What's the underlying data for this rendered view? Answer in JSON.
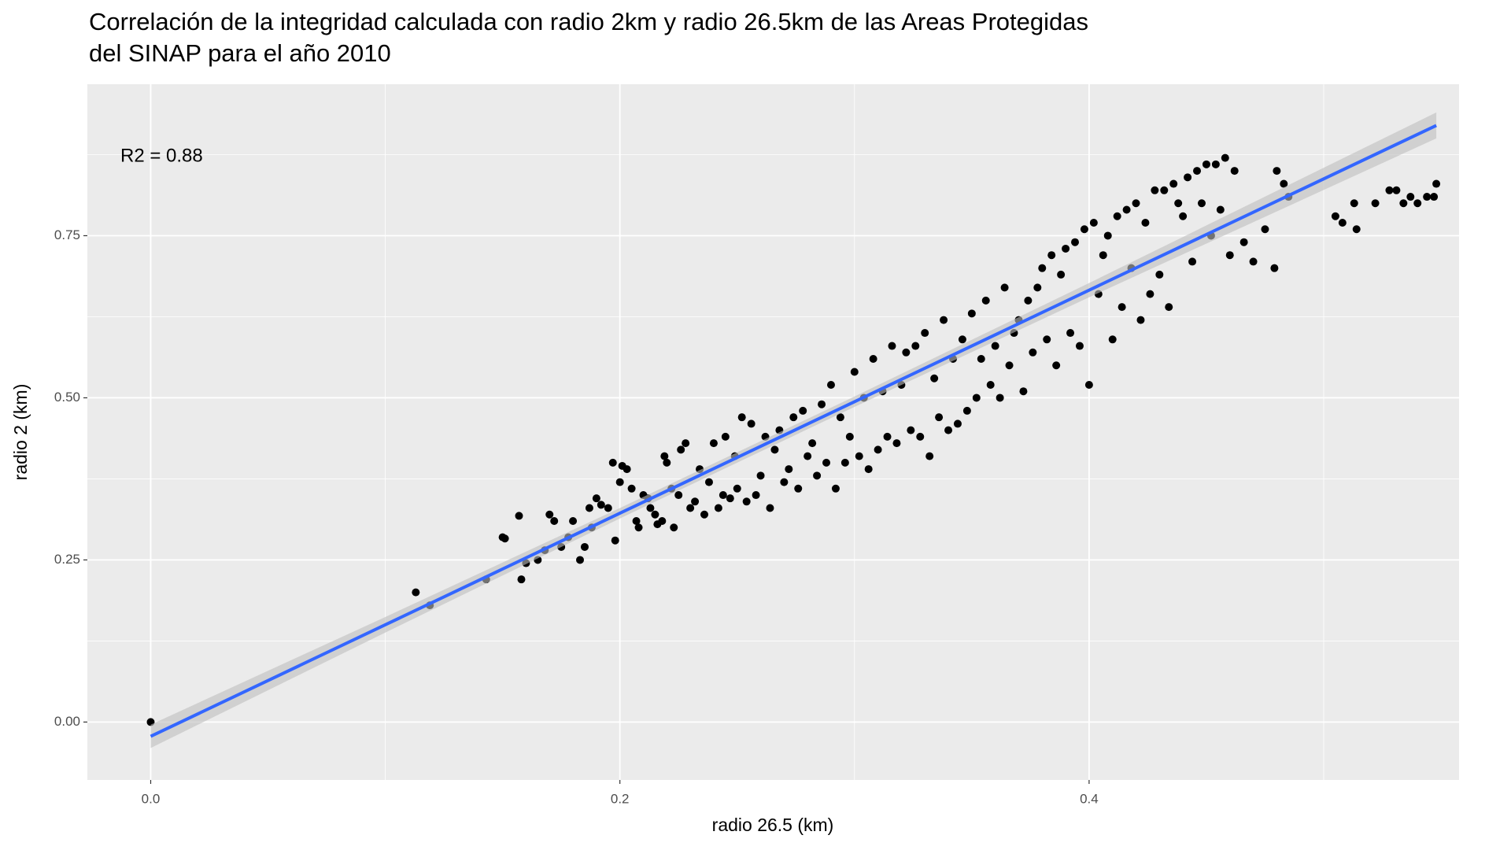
{
  "chart_data": {
    "type": "scatter",
    "title": [
      "Correlación de la integridad calculada con radio 2km y radio 26.5km de las Areas Protegidas",
      "del SINAP para el año 2010"
    ],
    "x_label": "radio 26.5 (km)",
    "y_label": "radio 2 (km)",
    "annotation": "R2 = 0.88",
    "color": "#000000",
    "grid": true,
    "xlim": [
      -0.027,
      0.5577
    ],
    "ylim": [
      -0.0893,
      0.9836
    ],
    "xticks": [
      {
        "value": 0,
        "label": "0.0"
      },
      {
        "value": 0.2,
        "label": "0.2"
      },
      {
        "value": 0.4,
        "label": "0.4"
      }
    ],
    "yticks": [
      {
        "value": 0,
        "label": "0.00"
      },
      {
        "value": 0.25,
        "label": "0.25"
      },
      {
        "value": 0.5,
        "label": "0.50"
      },
      {
        "value": 0.75,
        "label": "0.75"
      }
    ],
    "minor_xticks": [
      0.1,
      0.3,
      0.5
    ],
    "minor_yticks": [
      0.125,
      0.375,
      0.625,
      0.875
    ],
    "x": [
      0,
      0.113,
      0.119,
      0.143,
      0.15,
      0.151,
      0.157,
      0.158,
      0.16,
      0.165,
      0.168,
      0.17,
      0.172,
      0.175,
      0.178,
      0.18,
      0.183,
      0.185,
      0.187,
      0.188,
      0.19,
      0.192,
      0.195,
      0.197,
      0.198,
      0.2,
      0.201,
      0.203,
      0.205,
      0.207,
      0.208,
      0.21,
      0.212,
      0.213,
      0.215,
      0.216,
      0.218,
      0.219,
      0.22,
      0.222,
      0.223,
      0.225,
      0.226,
      0.228,
      0.23,
      0.232,
      0.234,
      0.236,
      0.238,
      0.24,
      0.242,
      0.244,
      0.245,
      0.247,
      0.249,
      0.25,
      0.252,
      0.254,
      0.256,
      0.258,
      0.26,
      0.262,
      0.264,
      0.266,
      0.268,
      0.27,
      0.272,
      0.274,
      0.276,
      0.278,
      0.28,
      0.282,
      0.284,
      0.286,
      0.288,
      0.29,
      0.292,
      0.294,
      0.296,
      0.298,
      0.3,
      0.302,
      0.304,
      0.306,
      0.308,
      0.31,
      0.312,
      0.314,
      0.316,
      0.318,
      0.32,
      0.322,
      0.324,
      0.326,
      0.328,
      0.33,
      0.332,
      0.334,
      0.336,
      0.338,
      0.34,
      0.342,
      0.344,
      0.346,
      0.348,
      0.35,
      0.352,
      0.354,
      0.356,
      0.358,
      0.36,
      0.362,
      0.364,
      0.366,
      0.368,
      0.37,
      0.372,
      0.374,
      0.376,
      0.378,
      0.38,
      0.382,
      0.384,
      0.386,
      0.388,
      0.39,
      0.392,
      0.394,
      0.396,
      0.398,
      0.4,
      0.402,
      0.404,
      0.406,
      0.408,
      0.41,
      0.412,
      0.414,
      0.416,
      0.418,
      0.42,
      0.422,
      0.424,
      0.426,
      0.428,
      0.43,
      0.432,
      0.434,
      0.436,
      0.438,
      0.44,
      0.442,
      0.444,
      0.446,
      0.448,
      0.45,
      0.452,
      0.454,
      0.456,
      0.458,
      0.46,
      0.462,
      0.466,
      0.47,
      0.475,
      0.479,
      0.48,
      0.483,
      0.485,
      0.505,
      0.508,
      0.513,
      0.514,
      0.522,
      0.528,
      0.531,
      0.534,
      0.537,
      0.54,
      0.544,
      0.547,
      0.548
    ],
    "values": [
      0,
      0.2,
      0.18,
      0.22,
      0.285,
      0.283,
      0.318,
      0.22,
      0.245,
      0.25,
      0.265,
      0.32,
      0.31,
      0.27,
      0.285,
      0.31,
      0.25,
      0.27,
      0.33,
      0.3,
      0.345,
      0.335,
      0.33,
      0.4,
      0.28,
      0.37,
      0.395,
      0.39,
      0.36,
      0.31,
      0.3,
      0.35,
      0.345,
      0.33,
      0.32,
      0.305,
      0.31,
      0.41,
      0.4,
      0.36,
      0.3,
      0.35,
      0.42,
      0.43,
      0.33,
      0.34,
      0.39,
      0.32,
      0.37,
      0.43,
      0.33,
      0.35,
      0.44,
      0.345,
      0.41,
      0.36,
      0.47,
      0.34,
      0.46,
      0.35,
      0.38,
      0.44,
      0.33,
      0.42,
      0.45,
      0.37,
      0.39,
      0.47,
      0.36,
      0.48,
      0.41,
      0.43,
      0.38,
      0.49,
      0.4,
      0.52,
      0.36,
      0.47,
      0.4,
      0.44,
      0.54,
      0.41,
      0.5,
      0.39,
      0.56,
      0.42,
      0.51,
      0.44,
      0.58,
      0.43,
      0.52,
      0.57,
      0.45,
      0.58,
      0.44,
      0.6,
      0.41,
      0.53,
      0.47,
      0.62,
      0.45,
      0.56,
      0.46,
      0.59,
      0.48,
      0.63,
      0.5,
      0.56,
      0.65,
      0.52,
      0.58,
      0.5,
      0.67,
      0.55,
      0.6,
      0.62,
      0.51,
      0.65,
      0.57,
      0.67,
      0.7,
      0.59,
      0.72,
      0.55,
      0.69,
      0.73,
      0.6,
      0.74,
      0.58,
      0.76,
      0.52,
      0.77,
      0.66,
      0.72,
      0.75,
      0.59,
      0.78,
      0.64,
      0.79,
      0.7,
      0.8,
      0.62,
      0.77,
      0.66,
      0.82,
      0.69,
      0.82,
      0.64,
      0.83,
      0.8,
      0.78,
      0.84,
      0.71,
      0.85,
      0.8,
      0.86,
      0.75,
      0.86,
      0.79,
      0.87,
      0.72,
      0.85,
      0.74,
      0.71,
      0.76,
      0.7,
      0.85,
      0.83,
      0.81,
      0.78,
      0.77,
      0.8,
      0.76,
      0.8,
      0.82,
      0.82,
      0.8,
      0.81,
      0.8,
      0.81,
      0.81,
      0.83
    ],
    "fit": {
      "color": "#3366ff",
      "band_color": "#bebebe",
      "x": [
        0,
        0.1,
        0.2,
        0.3,
        0.4,
        0.548
      ],
      "values": [
        -0.022,
        0.15,
        0.322,
        0.494,
        0.666,
        0.92
      ],
      "lower": [
        -0.04,
        0.138,
        0.314,
        0.486,
        0.655,
        0.9
      ],
      "upper": [
        -0.004,
        0.162,
        0.33,
        0.502,
        0.677,
        0.94
      ]
    }
  }
}
